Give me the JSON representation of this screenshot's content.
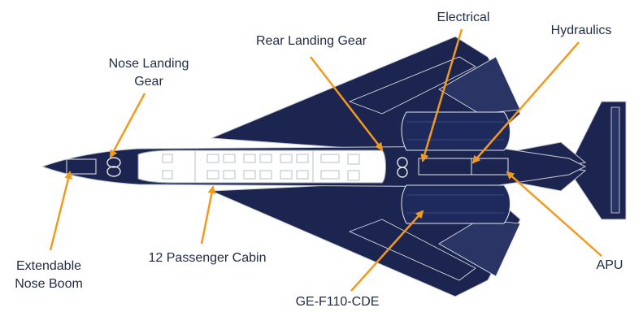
{
  "labels": {
    "nose_landing_gear": [
      "Nose Landing",
      "Gear"
    ],
    "rear_landing_gear": "Rear Landing Gear",
    "electrical": "Electrical",
    "hydraulics": "Hydraulics",
    "extendable_nose_boom": [
      "Extendable",
      "Nose Boom"
    ],
    "passenger_cabin": "12 Passenger Cabin",
    "apu": "APU",
    "engine": "GE-F110-CDE"
  },
  "colors": {
    "airframe": "#1c2550",
    "outline": "#e6e8ee",
    "cabin_fill": "#ffffff",
    "leader": "#f39a1e",
    "text": "#1f2a44"
  }
}
